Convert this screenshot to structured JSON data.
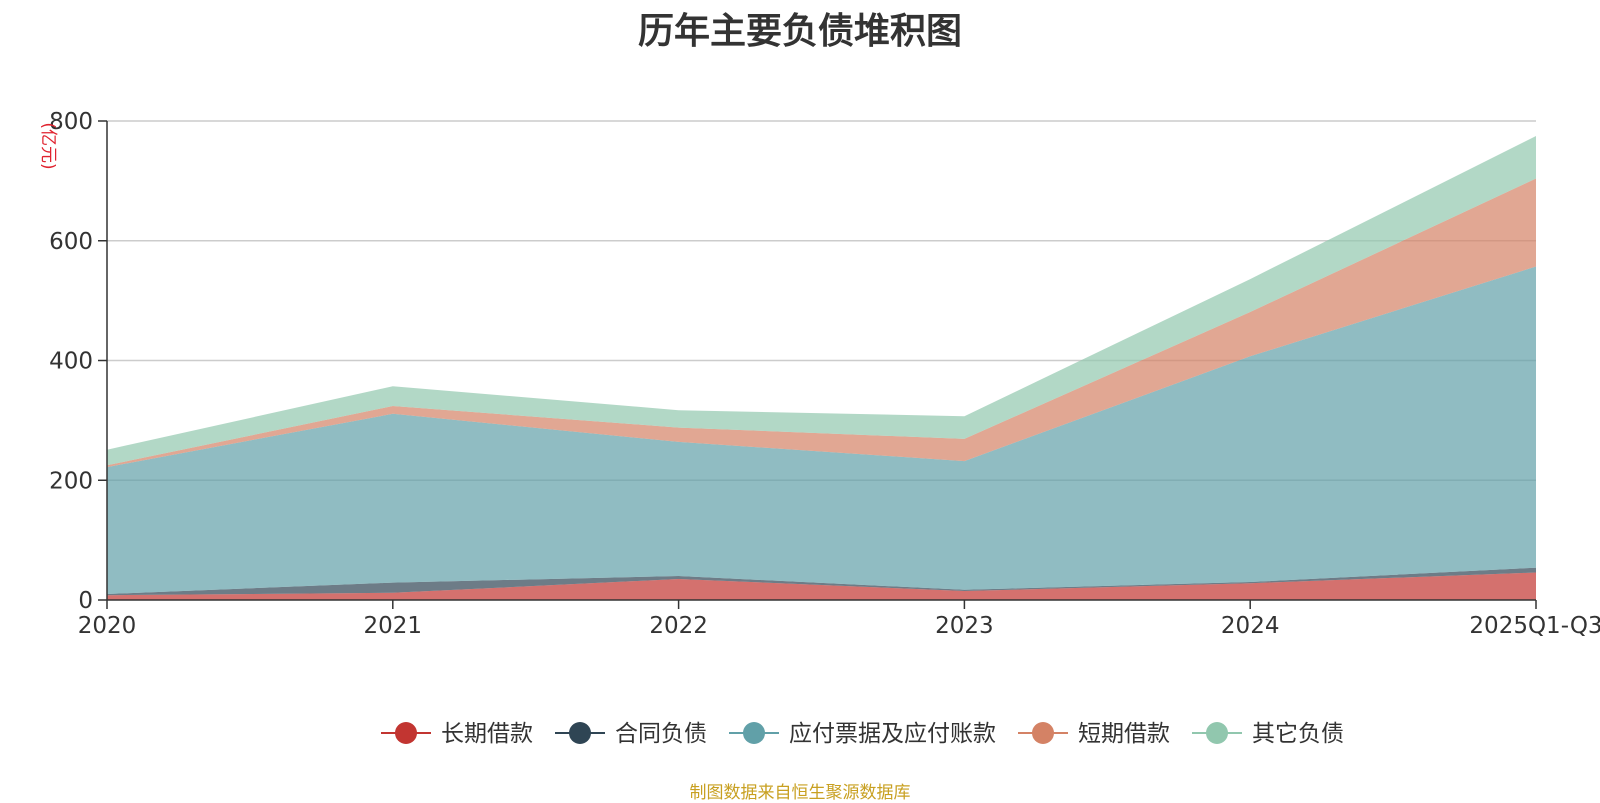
{
  "chart_data": {
    "type": "area",
    "stacked": true,
    "title": "历年主要负债堆积图",
    "unit_label": "(亿元)",
    "categories": [
      "2020",
      "2021",
      "2022",
      "2023",
      "2024",
      "2025Q1-Q3"
    ],
    "ylim": [
      0,
      800
    ],
    "yticks": [
      0,
      200,
      400,
      600,
      800
    ],
    "grid": true,
    "legend_position": "bottom",
    "series": [
      {
        "name": "长期借款",
        "color": "#c23531",
        "values": [
          8,
          12,
          35,
          15,
          28,
          46
        ]
      },
      {
        "name": "合同负债",
        "color": "#2f4554",
        "values": [
          2,
          17,
          5,
          2,
          2,
          8
        ]
      },
      {
        "name": "应付票据及应付账款",
        "color": "#61a0a8",
        "values": [
          212,
          282,
          224,
          215,
          377,
          503
        ]
      },
      {
        "name": "短期借款",
        "color": "#d48265",
        "values": [
          3,
          13,
          24,
          37,
          74,
          147
        ]
      },
      {
        "name": "其它负债",
        "color": "#91c7ae",
        "values": [
          26,
          33,
          29,
          38,
          55,
          71
        ]
      }
    ]
  },
  "footer": {
    "source": "制图数据来自恒生聚源数据库"
  }
}
